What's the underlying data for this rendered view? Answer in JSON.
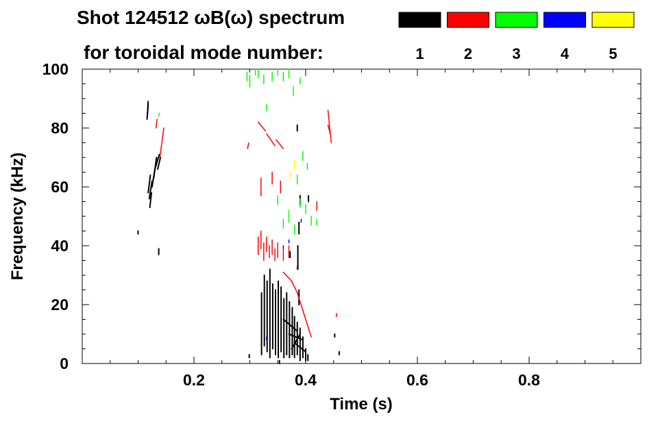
{
  "chart_data": {
    "type": "scatter",
    "title": "Shot 124512 ωB(ω) spectrum",
    "subtitle": "for toroidal mode number:",
    "xlabel": "Time (s)",
    "ylabel": "Frequency (kHz)",
    "xlim": [
      0.0,
      1.0
    ],
    "ylim": [
      0,
      100
    ],
    "x_ticks": [
      0.2,
      0.4,
      0.6,
      0.8
    ],
    "x_tick_labels": [
      "0.2",
      "0.4",
      "0.6",
      "0.8"
    ],
    "y_ticks": [
      0,
      20,
      40,
      60,
      80,
      100
    ],
    "y_tick_labels": [
      "0",
      "20",
      "40",
      "60",
      "80",
      "100"
    ],
    "grid": false,
    "legend_position": "top-right",
    "legend": [
      {
        "label": "1",
        "color": "#000000"
      },
      {
        "label": "2",
        "color": "#ff0000"
      },
      {
        "label": "3",
        "color": "#00ff00"
      },
      {
        "label": "4",
        "color": "#0000ff"
      },
      {
        "label": "5",
        "color": "#ffff00"
      }
    ],
    "series": [
      {
        "mode": 1,
        "color": "#000000",
        "segments": [
          [
            0.12,
            56,
            0.125,
            62
          ],
          [
            0.125,
            60,
            0.13,
            66
          ],
          [
            0.128,
            63,
            0.133,
            70
          ],
          [
            0.13,
            66,
            0.138,
            71
          ],
          [
            0.135,
            66,
            0.14,
            70
          ],
          [
            0.118,
            58,
            0.122,
            64
          ],
          [
            0.121,
            53,
            0.124,
            58
          ],
          [
            0.116,
            83,
            0.118,
            88
          ],
          [
            0.117,
            85,
            0.118,
            89
          ],
          [
            0.1,
            44,
            0.1,
            45
          ],
          [
            0.137,
            37,
            0.137,
            39
          ],
          [
            0.321,
            3,
            0.321,
            24
          ],
          [
            0.326,
            6,
            0.326,
            30
          ],
          [
            0.331,
            4,
            0.331,
            28
          ],
          [
            0.336,
            2,
            0.336,
            32
          ],
          [
            0.341,
            5,
            0.341,
            27
          ],
          [
            0.346,
            3,
            0.346,
            25
          ],
          [
            0.351,
            2,
            0.351,
            28
          ],
          [
            0.356,
            4,
            0.356,
            26
          ],
          [
            0.361,
            2,
            0.361,
            22
          ],
          [
            0.366,
            3,
            0.366,
            24
          ],
          [
            0.371,
            2,
            0.371,
            21
          ],
          [
            0.376,
            3,
            0.376,
            19
          ],
          [
            0.38,
            2,
            0.38,
            16
          ],
          [
            0.385,
            3,
            0.385,
            14
          ],
          [
            0.39,
            1,
            0.39,
            12
          ],
          [
            0.395,
            2,
            0.395,
            9
          ],
          [
            0.4,
            1,
            0.4,
            5
          ],
          [
            0.404,
            1,
            0.404,
            3
          ],
          [
            0.375,
            5,
            0.39,
            10
          ],
          [
            0.37,
            10,
            0.395,
            8
          ],
          [
            0.36,
            15,
            0.385,
            11
          ],
          [
            0.38,
            7,
            0.4,
            4
          ],
          [
            0.386,
            32,
            0.386,
            40
          ],
          [
            0.388,
            44,
            0.388,
            48
          ],
          [
            0.39,
            54,
            0.39,
            57
          ],
          [
            0.385,
            79,
            0.385,
            81
          ],
          [
            0.388,
            20,
            0.388,
            25
          ],
          [
            0.372,
            36,
            0.372,
            38
          ],
          [
            0.405,
            55,
            0.405,
            57
          ],
          [
            0.46,
            3,
            0.46,
            4
          ],
          [
            0.452,
            9,
            0.452,
            10
          ],
          [
            0.353,
            0,
            0.353,
            1
          ],
          [
            0.299,
            2,
            0.299,
            3
          ]
        ]
      },
      {
        "mode": 2,
        "color": "#ff0000",
        "segments": [
          [
            0.139,
            70,
            0.146,
            80
          ],
          [
            0.132,
            80,
            0.134,
            83
          ],
          [
            0.296,
            73,
            0.298,
            75
          ],
          [
            0.315,
            82,
            0.328,
            79
          ],
          [
            0.33,
            78,
            0.345,
            74
          ],
          [
            0.347,
            76,
            0.36,
            73
          ],
          [
            0.32,
            57,
            0.32,
            63
          ],
          [
            0.34,
            61,
            0.34,
            65
          ],
          [
            0.355,
            58,
            0.355,
            62
          ],
          [
            0.315,
            37,
            0.315,
            43
          ],
          [
            0.32,
            39,
            0.32,
            45
          ],
          [
            0.325,
            35,
            0.325,
            41
          ],
          [
            0.33,
            38,
            0.33,
            43
          ],
          [
            0.335,
            36,
            0.335,
            40
          ],
          [
            0.34,
            37,
            0.34,
            42
          ],
          [
            0.345,
            35,
            0.345,
            39
          ],
          [
            0.35,
            36,
            0.35,
            41
          ],
          [
            0.36,
            35,
            0.36,
            39
          ],
          [
            0.37,
            36,
            0.37,
            40
          ],
          [
            0.36,
            31,
            0.375,
            28
          ],
          [
            0.375,
            28,
            0.385,
            24
          ],
          [
            0.385,
            24,
            0.395,
            18
          ],
          [
            0.395,
            18,
            0.405,
            12
          ],
          [
            0.405,
            12,
            0.41,
            9
          ],
          [
            0.44,
            86,
            0.443,
            80
          ],
          [
            0.443,
            80,
            0.446,
            75
          ],
          [
            0.44,
            81,
            0.444,
            78
          ],
          [
            0.455,
            16,
            0.455,
            17
          ],
          [
            0.42,
            52,
            0.42,
            55
          ]
        ]
      },
      {
        "mode": 3,
        "color": "#00ff00",
        "segments": [
          [
            0.295,
            96,
            0.295,
            99
          ],
          [
            0.3,
            94,
            0.3,
            98
          ],
          [
            0.31,
            98,
            0.31,
            100
          ],
          [
            0.315,
            97,
            0.315,
            100
          ],
          [
            0.325,
            95,
            0.325,
            98
          ],
          [
            0.34,
            96,
            0.34,
            99
          ],
          [
            0.35,
            98,
            0.35,
            100
          ],
          [
            0.36,
            96,
            0.36,
            99
          ],
          [
            0.37,
            97,
            0.37,
            100
          ],
          [
            0.378,
            91,
            0.378,
            94
          ],
          [
            0.39,
            95,
            0.39,
            97
          ],
          [
            0.33,
            86,
            0.33,
            88
          ],
          [
            0.137,
            84,
            0.138,
            85
          ],
          [
            0.36,
            46,
            0.36,
            49
          ],
          [
            0.37,
            48,
            0.37,
            52
          ],
          [
            0.38,
            44,
            0.38,
            47
          ],
          [
            0.35,
            54,
            0.35,
            57
          ],
          [
            0.39,
            53,
            0.39,
            56
          ],
          [
            0.4,
            51,
            0.4,
            54
          ],
          [
            0.41,
            47,
            0.41,
            50
          ],
          [
            0.385,
            61,
            0.385,
            64
          ],
          [
            0.395,
            69,
            0.395,
            72
          ],
          [
            0.403,
            66,
            0.403,
            68
          ],
          [
            0.42,
            47,
            0.42,
            49
          ]
        ]
      },
      {
        "mode": 4,
        "color": "#0000ff",
        "segments": [
          [
            0.392,
            48,
            0.392,
            49
          ],
          [
            0.37,
            41,
            0.37,
            42
          ],
          [
            0.385,
            32,
            0.385,
            33
          ],
          [
            0.33,
            8,
            0.33,
            9
          ],
          [
            0.36,
            39,
            0.36,
            40
          ]
        ]
      },
      {
        "mode": 5,
        "color": "#ffff00",
        "segments": [
          [
            0.38,
            66,
            0.38,
            69
          ],
          [
            0.372,
            63,
            0.372,
            65
          ]
        ]
      }
    ]
  }
}
